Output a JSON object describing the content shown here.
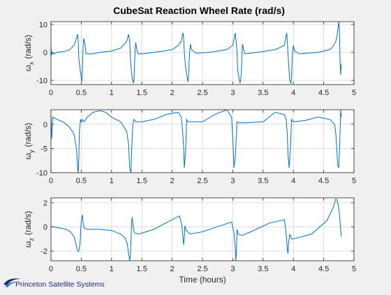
{
  "figure": {
    "title": "CubeSat Reaction Wheel Rate (rad/s)",
    "xlabel": "Time (hours)",
    "logo_text": "Princeton Satellite Systems"
  },
  "colors": {
    "line": "#0072bd",
    "axes_bg": "#ffffff",
    "figure_bg": "#f0f0f0",
    "grid": "#dcdcdc",
    "logo": "#1c2a6b"
  },
  "chart_data": [
    {
      "type": "line",
      "ylabel_main": "ω",
      "ylabel_sub": "x",
      "ylabel_unit": "(rad/s)",
      "xlim": [
        0,
        5
      ],
      "ylim": [
        -11.5,
        11
      ],
      "xticks": [
        0,
        0.5,
        1,
        1.5,
        2,
        2.5,
        3,
        3.5,
        4,
        4.5,
        5
      ],
      "yticks": [
        -10,
        0,
        10
      ],
      "grid": true,
      "series": [
        {
          "x": [
            0,
            0.01,
            0.02,
            0.05,
            0.1,
            0.2,
            0.3,
            0.38,
            0.42,
            0.44,
            0.45,
            0.46,
            0.48,
            0.5,
            0.51,
            0.52,
            0.53,
            0.54,
            0.56,
            0.58,
            0.6,
            0.7,
            0.8,
            1.0,
            1.15,
            1.25,
            1.28,
            1.3,
            1.31,
            1.32,
            1.34,
            1.36,
            1.37,
            1.38,
            1.39,
            1.4,
            1.42,
            1.44,
            1.5,
            1.7,
            2.0,
            2.1,
            2.15,
            2.18,
            2.19,
            2.2,
            2.22,
            2.24,
            2.26,
            2.27,
            2.28,
            2.3,
            2.32,
            2.4,
            2.6,
            2.9,
            3.0,
            3.04,
            3.06,
            3.07,
            3.08,
            3.1,
            3.12,
            3.14,
            3.15,
            3.16,
            3.18,
            3.2,
            3.4,
            3.7,
            3.85,
            3.89,
            3.9,
            3.92,
            3.94,
            3.96,
            3.97,
            3.98,
            4.0,
            4.02,
            4.1,
            4.4,
            4.6,
            4.65,
            4.7,
            4.72,
            4.74,
            4.75,
            4.76,
            4.77,
            4.78,
            4.79
          ],
          "y": [
            2,
            -1,
            0,
            -0.5,
            0,
            0.3,
            0.8,
            2.5,
            5,
            6.5,
            4,
            -2,
            -6,
            -9,
            -10.5,
            -6,
            2,
            5,
            3,
            -0.5,
            -0.5,
            -0.5,
            0,
            0.5,
            1.5,
            4,
            6.5,
            4,
            -2,
            -5,
            -9,
            -11,
            -10,
            -4,
            2,
            3.5,
            0.5,
            -0.5,
            -0.5,
            0,
            1,
            2.5,
            4,
            7,
            5,
            0,
            -5,
            -8,
            -10.5,
            -9,
            -3,
            3,
            1,
            -0.3,
            0,
            1,
            2.5,
            7,
            3,
            0,
            -6,
            -9,
            -11,
            -8,
            -2,
            3,
            1,
            -0.5,
            0,
            1,
            2.5,
            7,
            4,
            -4,
            -10,
            -11,
            -9,
            -2,
            2.5,
            0.5,
            -0.5,
            0,
            1,
            2,
            4,
            6,
            9,
            11,
            8,
            -3,
            -8,
            -4
          ]
        }
      ]
    },
    {
      "type": "line",
      "ylabel_main": "ω",
      "ylabel_sub": "y",
      "ylabel_unit": "(rad/s)",
      "xlim": [
        0,
        5
      ],
      "ylim": [
        -10,
        3
      ],
      "xticks": [
        0,
        0.5,
        1,
        1.5,
        2,
        2.5,
        3,
        3.5,
        4,
        4.5,
        5
      ],
      "yticks": [
        -10,
        -5,
        0
      ],
      "grid": true,
      "series": [
        {
          "x": [
            0,
            0.01,
            0.03,
            0.1,
            0.2,
            0.3,
            0.38,
            0.42,
            0.44,
            0.45,
            0.46,
            0.47,
            0.49,
            0.5,
            0.52,
            0.55,
            0.6,
            0.7,
            0.8,
            0.9,
            1.0,
            1.15,
            1.25,
            1.28,
            1.3,
            1.32,
            1.33,
            1.35,
            1.37,
            1.4,
            1.5,
            1.7,
            1.9,
            2.1,
            2.15,
            2.17,
            2.19,
            2.2,
            2.22,
            2.24,
            2.26,
            2.3,
            2.5,
            2.7,
            2.9,
            2.98,
            3.0,
            3.02,
            3.04,
            3.07,
            3.1,
            3.2,
            3.5,
            3.7,
            3.85,
            3.88,
            3.9,
            3.91,
            3.93,
            3.95,
            3.97,
            4.0,
            4.2,
            4.4,
            4.6,
            4.68,
            4.7,
            4.72,
            4.73,
            4.75,
            4.77,
            4.78,
            4.79
          ],
          "y": [
            2,
            -3,
            1.5,
            1,
            0.5,
            -0.5,
            -2,
            -5,
            -9,
            -10,
            -7,
            -1,
            1,
            0.5,
            1,
            0.5,
            1.5,
            2.5,
            2.8,
            2.5,
            1.5,
            0.5,
            -1.5,
            -4,
            -9,
            -10,
            -6,
            0,
            1,
            0.5,
            0.5,
            1,
            2,
            2.5,
            1.5,
            -1,
            -5,
            -9,
            -6,
            1,
            0.5,
            0.5,
            0.5,
            2,
            3,
            1.5,
            -3,
            -9,
            -7,
            0.5,
            0.3,
            0.3,
            0.5,
            2.5,
            2,
            1,
            -2,
            -6,
            -9,
            -5,
            1,
            0.5,
            0.8,
            1.5,
            1,
            0,
            -2,
            -6,
            -8.5,
            -9,
            -2,
            3,
            1.5
          ]
        }
      ]
    },
    {
      "type": "line",
      "ylabel_main": "ω",
      "ylabel_sub": "z",
      "ylabel_unit": "(rad/s)",
      "xlim": [
        0,
        5
      ],
      "ylim": [
        -2.8,
        2.4
      ],
      "xticks": [
        0,
        0.5,
        1,
        1.5,
        2,
        2.5,
        3,
        3.5,
        4,
        4.5,
        5
      ],
      "yticks": [
        -2,
        0,
        2
      ],
      "grid": true,
      "series": [
        {
          "x": [
            0,
            0.05,
            0.15,
            0.25,
            0.32,
            0.38,
            0.42,
            0.44,
            0.46,
            0.48,
            0.5,
            0.52,
            0.53,
            0.55,
            0.6,
            0.8,
            1.0,
            1.15,
            1.22,
            1.26,
            1.28,
            1.3,
            1.31,
            1.32,
            1.33,
            1.34,
            1.36,
            1.38,
            1.45,
            1.7,
            2.0,
            2.12,
            2.16,
            2.18,
            2.19,
            2.2,
            2.21,
            2.23,
            2.3,
            2.5,
            2.8,
            2.98,
            3.02,
            3.04,
            3.05,
            3.06,
            3.07,
            3.09,
            3.15,
            3.3,
            3.6,
            3.85,
            3.88,
            3.9,
            3.91,
            3.92,
            3.94,
            3.97,
            4.0,
            4.3,
            4.55,
            4.65,
            4.7,
            4.72,
            4.74,
            4.76,
            4.78,
            4.79
          ],
          "y": [
            0,
            0,
            -0.1,
            -0.2,
            -0.4,
            -0.8,
            -1.6,
            -2.0,
            -2.0,
            -1.3,
            0.5,
            1.0,
            0.3,
            -0.1,
            -0.2,
            -0.2,
            -0.3,
            -0.6,
            -0.9,
            -1.4,
            -2.2,
            -2.8,
            -2.4,
            -1.2,
            0.2,
            0.8,
            -0.1,
            -0.5,
            -0.6,
            -0.2,
            0.6,
            0.9,
            0.1,
            -1.0,
            -1.5,
            -0.8,
            0.1,
            -0.3,
            -0.6,
            -0.4,
            0.1,
            0.4,
            -0.5,
            -1.8,
            -2.8,
            -2.0,
            -0.2,
            -0.6,
            -0.7,
            -0.4,
            0.3,
            0.6,
            -0.5,
            -1.8,
            -2.2,
            -1.4,
            -0.6,
            -1.0,
            -1.0,
            -0.6,
            0.5,
            1.5,
            2.3,
            2.2,
            1.8,
            1.0,
            -0.2,
            -0.8
          ]
        }
      ]
    }
  ]
}
